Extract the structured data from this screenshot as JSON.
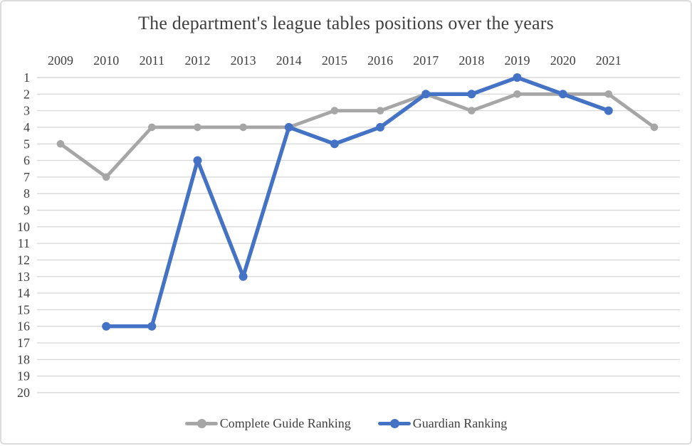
{
  "window": {
    "background": "#ffffff",
    "border_color": "#dcdcdc"
  },
  "chart_data": {
    "type": "line",
    "title": "The department's league tables positions over the years",
    "categories": [
      "2009",
      "2010",
      "2011",
      "2012",
      "2013",
      "2014",
      "2015",
      "2016",
      "2017",
      "2018",
      "2019",
      "2020",
      "2021",
      ""
    ],
    "series": [
      {
        "name": "Complete Guide Ranking",
        "color": "#a6a6a6",
        "values": [
          5,
          7,
          4,
          4,
          4,
          4,
          3,
          3,
          2,
          3,
          2,
          2,
          2,
          4
        ]
      },
      {
        "name": "Guardian Ranking",
        "color": "#4472c4",
        "values": [
          null,
          16,
          16,
          6,
          13,
          4,
          5,
          4,
          2,
          2,
          1,
          2,
          3,
          null
        ]
      }
    ],
    "x_axis": {
      "position": "top",
      "labels": [
        "2009",
        "2010",
        "2011",
        "2012",
        "2013",
        "2014",
        "2015",
        "2016",
        "2017",
        "2018",
        "2019",
        "2020",
        "2021"
      ]
    },
    "y_axis": {
      "min": 1,
      "max": 20,
      "step": 1,
      "inverted": true,
      "tick_labels": [
        "1",
        "2",
        "3",
        "4",
        "5",
        "6",
        "7",
        "8",
        "9",
        "10",
        "11",
        "12",
        "13",
        "14",
        "15",
        "16",
        "17",
        "18",
        "19",
        "20"
      ]
    },
    "grid": {
      "horizontal": true,
      "vertical": false,
      "color": "#d9d9d9"
    },
    "text_color": "#404040",
    "legend": {
      "position": "bottom"
    }
  }
}
